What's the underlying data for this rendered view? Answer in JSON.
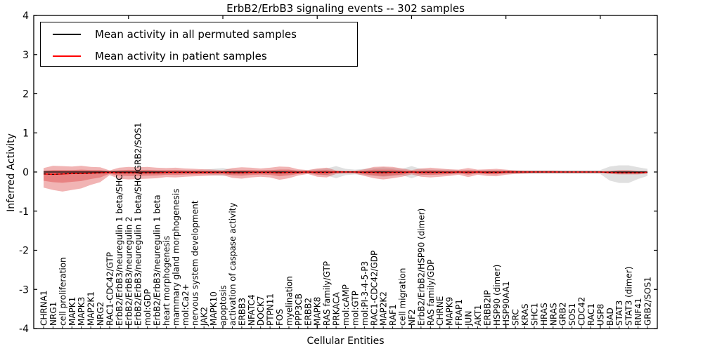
{
  "header": {
    "title": "ErbB2/ErbB3 signaling events -- 302 samples"
  },
  "axes": {
    "ylabel": "Inferred Activity",
    "xlabel": "Cellular Entities",
    "yticks": [
      4,
      3,
      2,
      1,
      0,
      -1,
      -2,
      -3,
      -4
    ],
    "ylim": [
      -4,
      4
    ]
  },
  "legend": {
    "entries": [
      {
        "label": "Mean activity in all permuted samples",
        "color": "#000000"
      },
      {
        "label": "Mean activity in patient samples",
        "color": "#ff0000"
      }
    ],
    "position": "upper-left"
  },
  "colors": {
    "patient_line": "#ff0000",
    "permuted_line": "#000000",
    "patient_fill": "#dd4444",
    "permuted_fill": "#999999",
    "zero_dash": "#000000"
  },
  "chart_data": {
    "type": "area",
    "description": "Per-entity mean activity lines with shaded spread bands; red = patient samples, gray = permuted samples",
    "title": "ErbB2/ErbB3 signaling events -- 302 samples",
    "xlabel": "Cellular Entities",
    "ylabel": "Inferred Activity",
    "ylim": [
      -4,
      4
    ],
    "inner_band_ratio": 0.5,
    "categories": [
      "CHRNA1",
      "NRG1",
      "cell proliferation",
      "MAPK1",
      "MAPK3",
      "MAP2K1",
      "NRG2",
      "RAC1-CDC42/GTP",
      "ErbB2/ErbB3/neuregulin 1 beta/SHC",
      "ErbB2/ErbB3/neuregulin 2",
      "ErbB2/ErbB3/neuregulin 1 beta/SHC/GRB2/SOS1",
      "mol:GDP",
      "ErbB2/ErbB3/neuregulin 1 beta",
      "heart morphogenesis",
      "mammary gland morphogenesis",
      "mol:Ca2+",
      "nervous system development",
      "JAK2",
      "MAPK10",
      "apoptosis",
      "activation of caspase activity",
      "ERBB3",
      "NFATC4",
      "DOCK7",
      "PTPN11",
      "FOS",
      "myelination",
      "PPP3CB",
      "ERBB2",
      "MAPK8",
      "RAS family/GTP",
      "PRKACA",
      "mol:cAMP",
      "mol:GTP",
      "mol:PI-3-4-5-P3",
      "RAC1-CDC42/GDP",
      "MAP2K2",
      "RAF1",
      "cell migration",
      "NF2",
      "ErbB2/ErbB2/HSP90 (dimer)",
      "RAS family/GDP",
      "CHRNE",
      "MAPK9",
      "FRAP1",
      "JUN",
      "AKT1",
      "ERBB2IP",
      "HSP90 (dimer)",
      "HSP90AA1",
      "SRC",
      "KRAS",
      "SHC1",
      "HRAS",
      "NRAS",
      "GRB2",
      "SOS1",
      "CDC42",
      "RAC1",
      "USP8",
      "BAD",
      "STAT3",
      "STAT3 (dimer)",
      "RNF41",
      "GRB2/SOS1"
    ],
    "series": [
      {
        "name": "Mean activity in all permuted samples",
        "values_constant": 0
      },
      {
        "name": "Mean activity in patient samples",
        "values": [
          -0.05,
          -0.06,
          -0.05,
          -0.04,
          -0.04,
          -0.03,
          -0.02,
          -0.01,
          -0.02,
          -0.02,
          -0.02,
          -0.02,
          -0.02,
          -0.01,
          -0.01,
          -0.01,
          -0.01,
          -0.01,
          -0.01,
          -0.01,
          -0.02,
          -0.02,
          -0.01,
          -0.01,
          -0.01,
          -0.02,
          -0.01,
          -0.01,
          0,
          -0.01,
          -0.01,
          0,
          0,
          0,
          -0.01,
          -0.01,
          -0.02,
          -0.01,
          -0.01,
          0,
          -0.01,
          -0.01,
          -0.01,
          -0.01,
          0,
          -0.01,
          0,
          -0.01,
          -0.01,
          0,
          0,
          0,
          0,
          0,
          0,
          0,
          0,
          0,
          0,
          0,
          -0.01,
          -0.02,
          -0.02,
          -0.02,
          -0.01
        ]
      }
    ],
    "patient_band_upper": [
      0.15,
      0.22,
      0.2,
      0.18,
      0.2,
      0.16,
      0.14,
      0.05,
      0.13,
      0.15,
      0.14,
      0.15,
      0.13,
      0.11,
      0.12,
      0.1,
      0.09,
      0.08,
      0.07,
      0.06,
      0.12,
      0.14,
      0.12,
      0.1,
      0.12,
      0.16,
      0.14,
      0.08,
      0.05,
      0.1,
      0.12,
      0.04,
      0.03,
      0.03,
      0.08,
      0.14,
      0.16,
      0.14,
      0.1,
      0.05,
      0.1,
      0.12,
      0.1,
      0.08,
      0.06,
      0.11,
      0.06,
      0.08,
      0.09,
      0.06,
      0.04,
      0.03,
      0.03,
      0.03,
      0.03,
      0.02,
      0.02,
      0.02,
      0.02,
      0.02,
      0.04,
      0.07,
      0.07,
      0.05,
      0.04
    ],
    "patient_band_lower": [
      0.35,
      0.4,
      0.45,
      0.42,
      0.38,
      0.3,
      0.24,
      0.07,
      0.15,
      0.17,
      0.16,
      0.15,
      0.14,
      0.12,
      0.13,
      0.11,
      0.1,
      0.09,
      0.08,
      0.07,
      0.13,
      0.15,
      0.13,
      0.11,
      0.13,
      0.18,
      0.15,
      0.08,
      0.05,
      0.11,
      0.13,
      0.05,
      0.04,
      0.04,
      0.09,
      0.15,
      0.17,
      0.15,
      0.11,
      0.06,
      0.11,
      0.13,
      0.11,
      0.09,
      0.07,
      0.12,
      0.07,
      0.09,
      0.1,
      0.07,
      0.05,
      0.04,
      0.03,
      0.03,
      0.03,
      0.03,
      0.03,
      0.03,
      0.03,
      0.03,
      0.04,
      0.04,
      0.04,
      0.04,
      0.03
    ],
    "permuted_band_upper": [
      0.05,
      0.05,
      0.05,
      0.05,
      0.05,
      0.05,
      0.05,
      0.04,
      0.05,
      0.05,
      0.05,
      0.05,
      0.05,
      0.05,
      0.05,
      0.05,
      0.05,
      0.06,
      0.08,
      0.1,
      0.06,
      0.05,
      0.05,
      0.05,
      0.05,
      0.06,
      0.06,
      0.05,
      0.05,
      0.07,
      0.09,
      0.15,
      0.08,
      0.06,
      0.08,
      0.1,
      0.12,
      0.1,
      0.08,
      0.15,
      0.08,
      0.06,
      0.06,
      0.06,
      0.05,
      0.05,
      0.05,
      0.05,
      0.05,
      0.05,
      0.05,
      0.05,
      0.05,
      0.05,
      0.05,
      0.05,
      0.05,
      0.05,
      0.05,
      0.05,
      0.14,
      0.17,
      0.17,
      0.12,
      0.08
    ],
    "permuted_band_lower": [
      0.05,
      0.05,
      0.05,
      0.05,
      0.05,
      0.05,
      0.05,
      0.04,
      0.05,
      0.05,
      0.05,
      0.05,
      0.05,
      0.05,
      0.05,
      0.05,
      0.05,
      0.06,
      0.08,
      0.1,
      0.06,
      0.05,
      0.05,
      0.05,
      0.05,
      0.06,
      0.06,
      0.05,
      0.05,
      0.07,
      0.09,
      0.16,
      0.08,
      0.06,
      0.08,
      0.1,
      0.12,
      0.1,
      0.08,
      0.16,
      0.08,
      0.06,
      0.06,
      0.06,
      0.05,
      0.05,
      0.05,
      0.05,
      0.05,
      0.05,
      0.05,
      0.05,
      0.05,
      0.05,
      0.05,
      0.05,
      0.05,
      0.05,
      0.05,
      0.05,
      0.22,
      0.28,
      0.28,
      0.18,
      0.1
    ],
    "legend_entries": [
      "Mean activity in all permuted samples",
      "Mean activity in patient samples"
    ],
    "grid": false
  }
}
